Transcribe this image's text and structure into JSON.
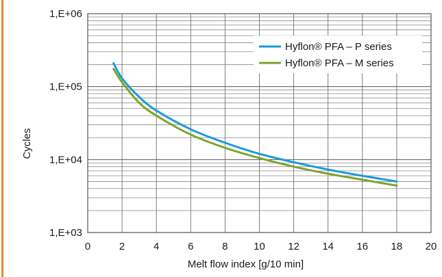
{
  "accent_color": "#e08a2a",
  "chart_data": {
    "type": "line",
    "xlabel": "Melt flow index [g/10 min]",
    "ylabel": "Cycles",
    "xlim": [
      0,
      20
    ],
    "ylim": [
      1000,
      1000000
    ],
    "yscale": "log",
    "x_ticks": [
      0,
      2,
      4,
      6,
      8,
      10,
      12,
      14,
      16,
      18,
      20
    ],
    "x_tick_labels": [
      "0",
      "2",
      "4",
      "6",
      "8",
      "10",
      "12",
      "14",
      "16",
      "18",
      "20"
    ],
    "y_ticks": [
      1000,
      10000,
      100000,
      1000000
    ],
    "y_tick_labels": [
      "1,E+03",
      "1,E+04",
      "1,E+05",
      "1,E+06"
    ],
    "grid": true,
    "legend_position": "top-right",
    "series": [
      {
        "name": "Hyflon® PFA – P series",
        "color": "#1a9ad6",
        "x": [
          1.5,
          2,
          3,
          4,
          6,
          8,
          10,
          12,
          14,
          16,
          18
        ],
        "y": [
          210000,
          130000,
          72000,
          47000,
          26000,
          17000,
          12000,
          9200,
          7300,
          6000,
          5000
        ]
      },
      {
        "name": "Hyflon® PFA – M series",
        "color": "#7aa52a",
        "x": [
          1.5,
          2,
          3,
          4,
          6,
          8,
          10,
          12,
          14,
          16,
          18
        ],
        "y": [
          175000,
          115000,
          60000,
          40000,
          22000,
          14500,
          10500,
          8000,
          6400,
          5300,
          4400
        ]
      }
    ]
  }
}
